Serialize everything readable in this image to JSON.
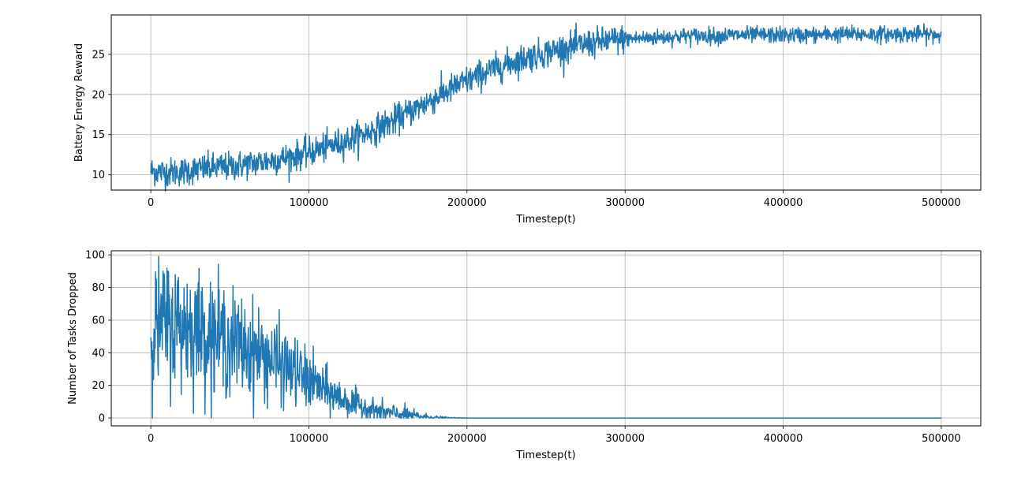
{
  "chart_data": [
    {
      "type": "line",
      "title": "",
      "xlabel": "Timestep(t)",
      "ylabel": "Battery Energy Reward",
      "xlim": [
        -25000,
        525000
      ],
      "ylim": [
        8.1,
        29.9
      ],
      "xticks": [
        0,
        100000,
        200000,
        300000,
        400000,
        500000
      ],
      "yticks": [
        10,
        15,
        20,
        25
      ],
      "grid": true,
      "color": "#1f77b4",
      "series": [
        {
          "x": [
            0,
            10000,
            20000,
            30000,
            40000,
            50000,
            60000,
            70000,
            80000,
            90000,
            100000,
            110000,
            120000,
            130000,
            140000,
            150000,
            160000,
            170000,
            180000,
            190000,
            200000,
            210000,
            220000,
            230000,
            240000,
            250000,
            260000,
            270000,
            280000,
            290000,
            300000,
            310000,
            320000,
            330000,
            340000,
            350000,
            360000,
            370000,
            380000,
            390000,
            400000,
            410000,
            420000,
            430000,
            440000,
            450000,
            460000,
            470000,
            480000,
            490000,
            500000
          ],
          "values": [
            10.5,
            10.3,
            10.4,
            10.7,
            10.9,
            11.0,
            11.3,
            11.6,
            11.9,
            12.3,
            12.8,
            13.4,
            14.0,
            14.7,
            15.5,
            16.4,
            17.4,
            18.5,
            19.6,
            20.7,
            21.7,
            22.6,
            23.4,
            24.1,
            24.7,
            25.2,
            25.7,
            26.1,
            26.4,
            26.7,
            26.9,
            27.0,
            27.1,
            27.2,
            27.3,
            27.3,
            27.3,
            27.4,
            27.4,
            27.4,
            27.4,
            27.4,
            27.4,
            27.5,
            27.5,
            27.5,
            27.5,
            27.5,
            27.5,
            27.5,
            27.4
          ]
        }
      ]
    },
    {
      "type": "line",
      "title": "",
      "xlabel": "Timestep(t)",
      "ylabel": "Number of Tasks Dropped",
      "xlim": [
        -25000,
        525000
      ],
      "ylim": [
        -4.8,
        102.5
      ],
      "xticks": [
        0,
        100000,
        200000,
        300000,
        400000,
        500000
      ],
      "yticks": [
        0,
        20,
        40,
        60,
        80,
        100
      ],
      "grid": true,
      "color": "#1f77b4",
      "series": [
        {
          "x": [
            0,
            10000,
            20000,
            30000,
            40000,
            50000,
            60000,
            70000,
            80000,
            90000,
            100000,
            110000,
            120000,
            130000,
            140000,
            150000,
            160000,
            170000,
            180000,
            190000,
            200000,
            250000,
            300000,
            350000,
            400000,
            450000,
            500000
          ],
          "values": [
            55,
            58,
            57,
            54,
            51,
            47,
            43,
            39,
            34,
            29,
            23,
            17,
            12,
            8,
            5,
            3,
            2,
            1,
            0.4,
            0.1,
            0,
            0,
            0,
            0,
            0,
            0,
            0
          ]
        }
      ]
    }
  ]
}
